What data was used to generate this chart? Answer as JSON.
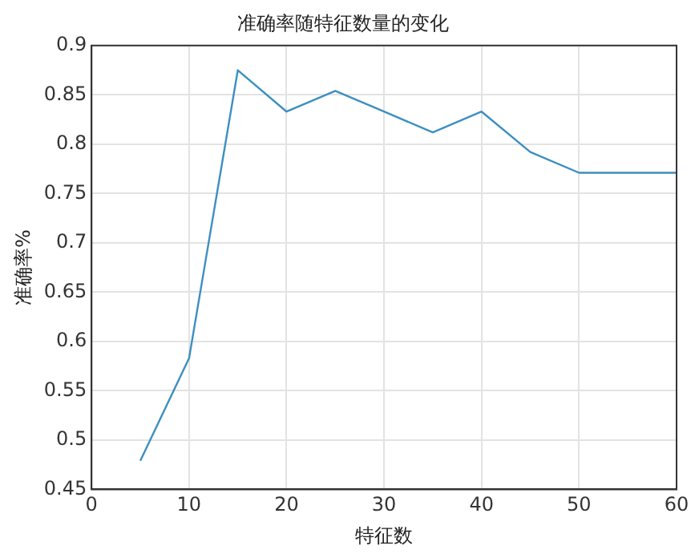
{
  "chart_data": {
    "type": "line",
    "title": "准确率随特征数量的变化",
    "xlabel": "特征数",
    "ylabel": "准确率%",
    "x": [
      5,
      10,
      15,
      20,
      25,
      30,
      35,
      40,
      45,
      50,
      55,
      60
    ],
    "series": [
      {
        "color": "#3d8fc0",
        "values": [
          0.479,
          0.583,
          0.875,
          0.833,
          0.854,
          0.833,
          0.812,
          0.833,
          0.792,
          0.771,
          0.771,
          0.771
        ]
      }
    ],
    "xlim": [
      0,
      60
    ],
    "xticks": [
      0,
      10,
      20,
      30,
      40,
      50,
      60
    ],
    "ylim": [
      0.45,
      0.9
    ],
    "yticks": [
      0.45,
      0.5,
      0.55,
      0.6,
      0.65,
      0.7,
      0.75,
      0.8,
      0.85,
      0.9
    ],
    "grid": true,
    "legend": false,
    "marker": "none",
    "line_style": "solid"
  }
}
